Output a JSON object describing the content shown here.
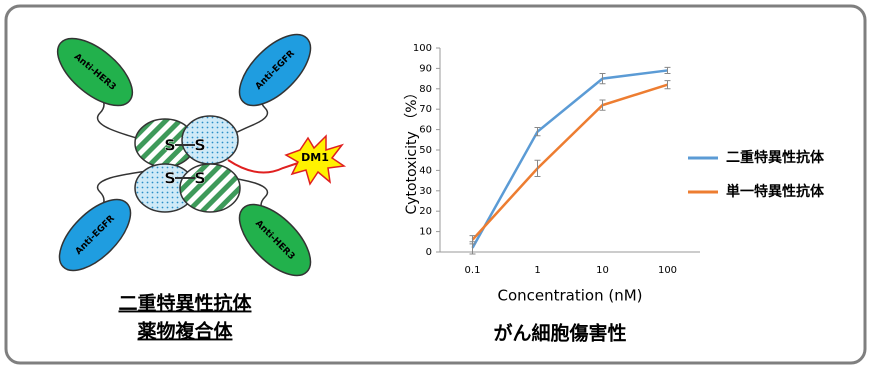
{
  "chart_data": {
    "type": "line",
    "x_label": "Concentration (nM)",
    "y_label": "Cytotoxicity （%）",
    "caption": "がん細胞傷害性",
    "categories": [
      "0.1",
      "1",
      "10",
      "100"
    ],
    "series": [
      {
        "name": "二重特異性抗体",
        "color": "#5b9bd5",
        "values": [
          2,
          59,
          85,
          89
        ],
        "errors": [
          3,
          2,
          2.5,
          1.5
        ]
      },
      {
        "name": "単一特異性抗体",
        "color": "#ed7d31",
        "values": [
          6,
          41,
          72,
          82
        ],
        "errors": [
          2,
          4,
          2.5,
          2
        ]
      }
    ],
    "ylim": [
      0,
      100
    ],
    "yticks": [
      0,
      10,
      20,
      30,
      40,
      50,
      60,
      70,
      80,
      90,
      100
    ]
  },
  "diagram": {
    "antibodies": [
      "Anti-HER3",
      "Anti-EGFR",
      "Anti-EGFR",
      "Anti-HER3"
    ],
    "bonds": [
      "S",
      "S",
      "S",
      "S"
    ],
    "drug": "DM1",
    "caption": [
      "二重特異性抗体",
      "薬物複合体"
    ]
  }
}
